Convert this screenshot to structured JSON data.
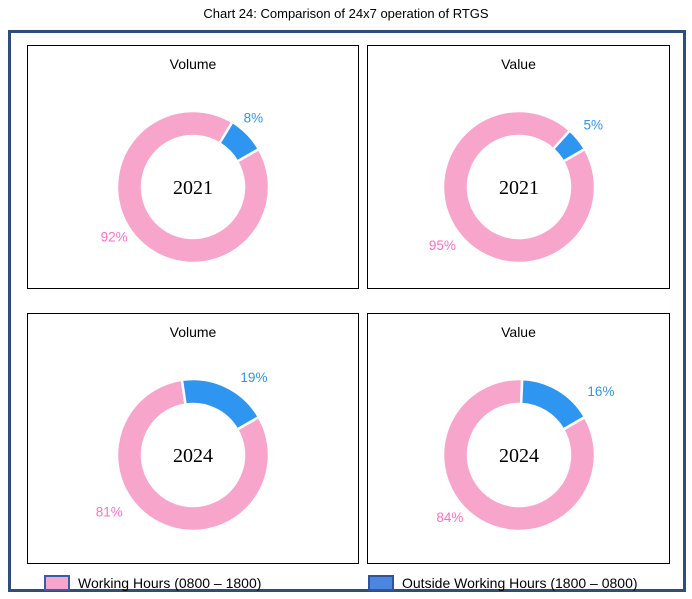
{
  "page_title": "Chart 24: Comparison of 24x7 operation of RTGS",
  "frame": {
    "border_color": "#2e4d7b"
  },
  "colors": {
    "working_slice": "#f8a5cc",
    "outside_slice": "#2e96f0",
    "working_label_text": "#ff6ec4",
    "outside_label_text": "#2e96f0",
    "slice_gap": "#ffffff",
    "legend_working_fill": "#f8a5cc",
    "legend_working_border": "#3a5ba6",
    "legend_outside_fill": "#4c86e0",
    "legend_outside_border": "#2f5597",
    "panel_border": "#000000"
  },
  "legend": {
    "items": [
      {
        "label": "Working Hours (0800 – 1800)"
      },
      {
        "label": "Outside Working Hours (1800 – 0800)"
      }
    ]
  },
  "chart_data": [
    {
      "type": "pie",
      "subtype": "donut",
      "panel_title": "Volume",
      "center_label": "2021",
      "categories": [
        "Working Hours (0800 – 1800)",
        "Outside Working Hours (1800 – 0800)"
      ],
      "values": [
        92,
        8
      ],
      "labels": [
        "92%",
        "8%"
      ],
      "unit": "%",
      "layout_hints": {
        "hole_ratio": 0.67,
        "outside_slice_end_angle_deg": 60,
        "clockwise": true,
        "legend_position": "bottom"
      }
    },
    {
      "type": "pie",
      "subtype": "donut",
      "panel_title": "Value",
      "center_label": "2021",
      "categories": [
        "Working Hours (0800 – 1800)",
        "Outside Working Hours (1800 – 0800)"
      ],
      "values": [
        95,
        5
      ],
      "labels": [
        "95%",
        "5%"
      ],
      "unit": "%",
      "layout_hints": {
        "hole_ratio": 0.67,
        "outside_slice_end_angle_deg": 60,
        "clockwise": true,
        "legend_position": "bottom"
      }
    },
    {
      "type": "pie",
      "subtype": "donut",
      "panel_title": "Volume",
      "center_label": "2024",
      "categories": [
        "Working Hours (0800 – 1800)",
        "Outside Working Hours (1800 – 0800)"
      ],
      "values": [
        81,
        19
      ],
      "labels": [
        "81%",
        "19%"
      ],
      "unit": "%",
      "layout_hints": {
        "hole_ratio": 0.67,
        "outside_slice_end_angle_deg": 60,
        "clockwise": true,
        "legend_position": "bottom"
      }
    },
    {
      "type": "pie",
      "subtype": "donut",
      "panel_title": "Value",
      "center_label": "2024",
      "categories": [
        "Working Hours (0800 – 1800)",
        "Outside Working Hours (1800 – 0800)"
      ],
      "values": [
        84,
        16
      ],
      "labels": [
        "84%",
        "16%"
      ],
      "unit": "%",
      "layout_hints": {
        "hole_ratio": 0.67,
        "outside_slice_end_angle_deg": 60,
        "clockwise": true,
        "legend_position": "bottom"
      }
    }
  ]
}
